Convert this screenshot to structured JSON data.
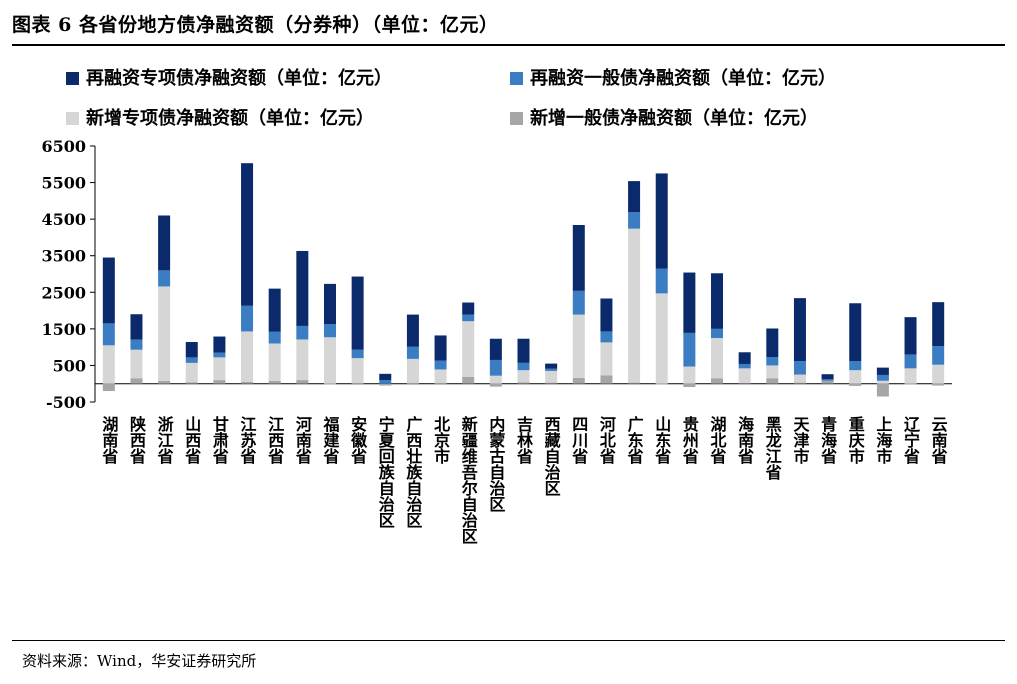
{
  "title": "图表 6 各省份地方债净融资额（分券种）（单位：亿元）",
  "source": "资料来源：Wind，华安证券研究所",
  "chart_data": {
    "type": "bar",
    "stacked": true,
    "title": "图表 6 各省份地方债净融资额（分券种）（单位：亿元）",
    "xlabel": "",
    "ylabel": "",
    "ylim": [
      -500,
      6500
    ],
    "yticks": [
      6500,
      5500,
      4500,
      3500,
      2500,
      1500,
      500,
      -500
    ],
    "legend_position": "top",
    "categories": [
      "湖南省",
      "陕西省",
      "浙江省",
      "山西省",
      "甘肃省",
      "江苏省",
      "江西省",
      "河南省",
      "福建省",
      "安徽省",
      "宁夏回族自治区",
      "广西壮族自治区",
      "北京市",
      "新疆维吾尔自治区",
      "内蒙古自治区",
      "吉林省",
      "西藏自治区",
      "四川省",
      "河北省",
      "广东省",
      "山东省",
      "贵州省",
      "湖北省",
      "海南省",
      "黑龙江省",
      "天津市",
      "青海省",
      "重庆市",
      "上海市",
      "辽宁省",
      "云南省"
    ],
    "series": [
      {
        "name": "再融资专项债净融资额（单位：亿元）",
        "color": "#0b2a6b",
        "values": [
          1800,
          690,
          1500,
          420,
          440,
          3900,
          1180,
          2050,
          1100,
          2000,
          170,
          880,
          690,
          330,
          580,
          660,
          140,
          1800,
          900,
          850,
          2600,
          1650,
          1520,
          320,
          780,
          1720,
          140,
          1580,
          200,
          1020,
          1200
        ]
      },
      {
        "name": "再融资一般债净融资额（单位：亿元）",
        "color": "#3a7dc2",
        "values": [
          600,
          280,
          440,
          150,
          130,
          700,
          320,
          370,
          360,
          230,
          100,
          330,
          240,
          180,
          430,
          200,
          60,
          650,
          300,
          450,
          680,
          920,
          250,
          120,
          230,
          370,
          40,
          250,
          160,
          380,
          510
        ]
      },
      {
        "name": "新增专项债净融资额（单位：亿元）",
        "color": "#d6d6d6",
        "values": [
          1050,
          780,
          2580,
          530,
          620,
          1380,
          1020,
          1110,
          1270,
          700,
          0,
          680,
          390,
          1520,
          220,
          330,
          320,
          1730,
          900,
          4210,
          2470,
          470,
          1100,
          400,
          350,
          220,
          0,
          370,
          80,
          420,
          520
        ]
      },
      {
        "name": "新增一般债净融资额（单位：亿元）",
        "color": "#a6a6a6",
        "values": [
          -200,
          150,
          80,
          40,
          100,
          50,
          80,
          100,
          -20,
          0,
          -50,
          0,
          0,
          190,
          -80,
          40,
          30,
          160,
          230,
          30,
          -20,
          -90,
          150,
          20,
          150,
          30,
          80,
          -60,
          -350,
          -20,
          -50
        ]
      }
    ]
  }
}
